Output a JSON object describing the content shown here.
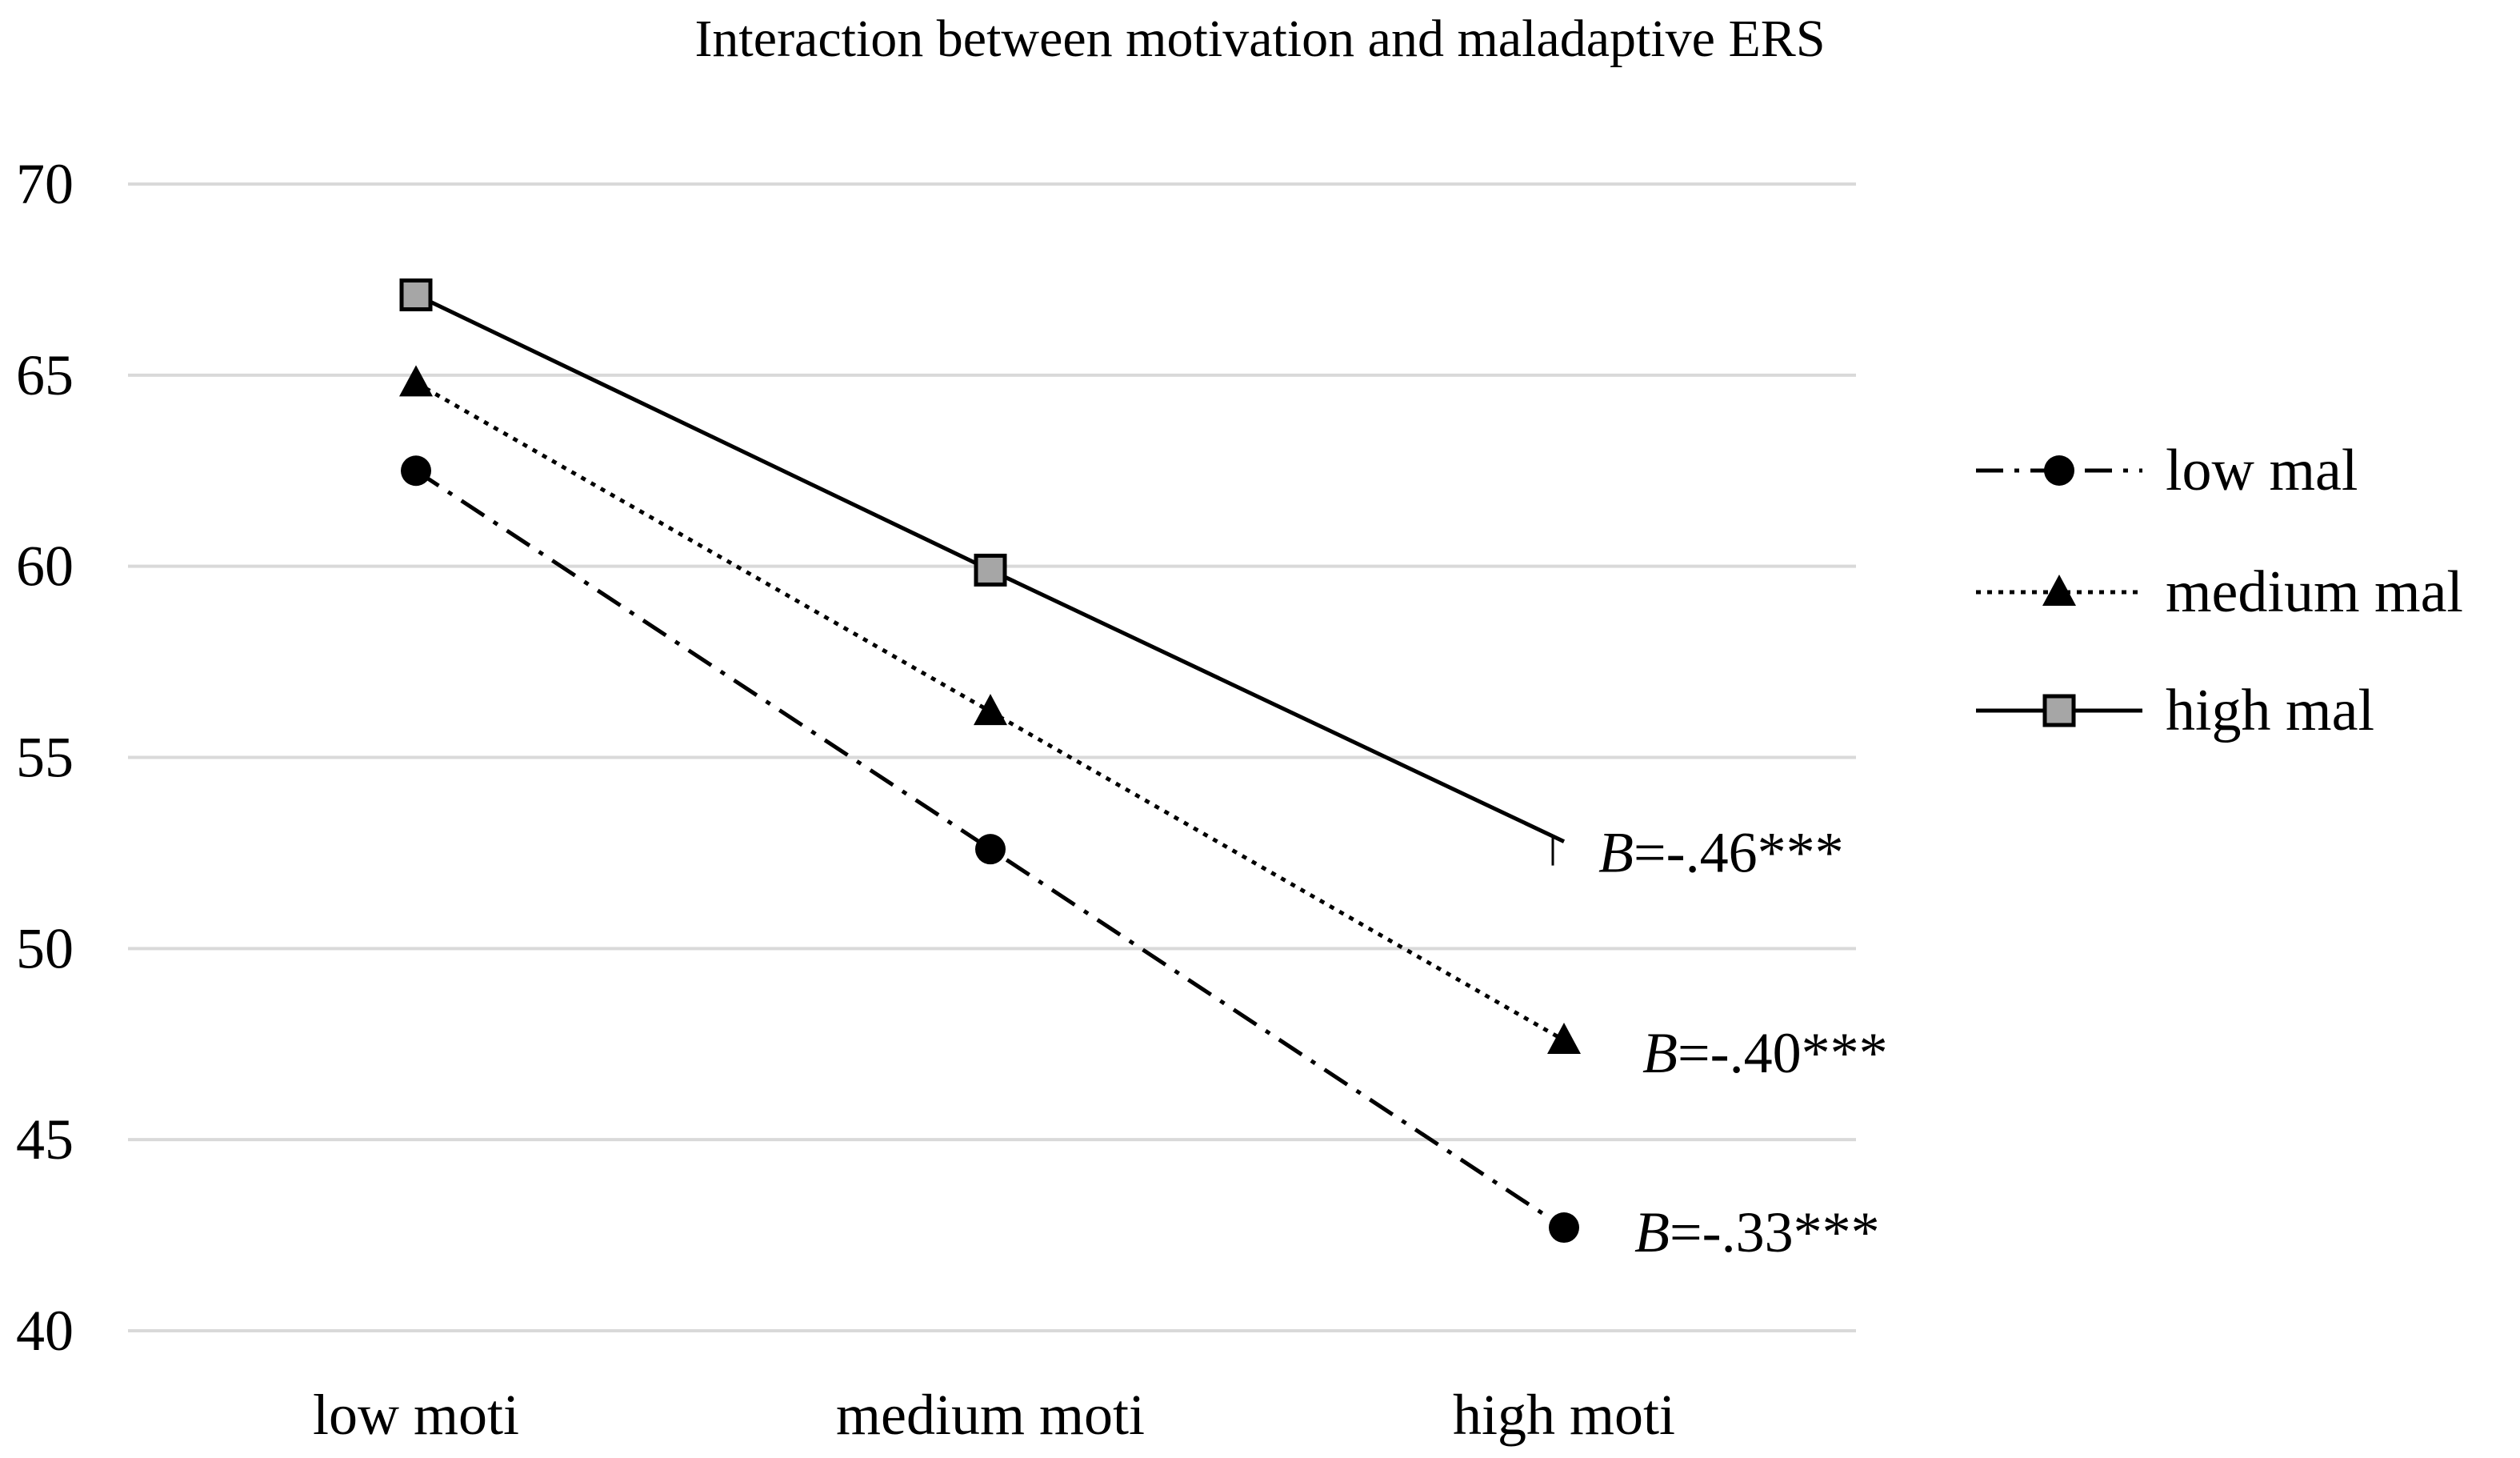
{
  "chart_data": {
    "type": "line",
    "title": "Interaction between motivation and maladaptive ERS",
    "xlabel": "",
    "ylabel": "",
    "categories": [
      "low moti",
      "medium moti",
      "high moti"
    ],
    "ylim": [
      40,
      70
    ],
    "yticks": [
      "70",
      "65",
      "60",
      "55",
      "50",
      "45",
      "40"
    ],
    "grid": true,
    "legend_position": "right",
    "series": [
      {
        "name": "low mal",
        "values": [
          62.5,
          52.6,
          42.7
        ],
        "marker": "circle",
        "line_style": "dash-dot",
        "annotation": "=-.33***",
        "annotation_italic": "B"
      },
      {
        "name": "medium mal",
        "values": [
          64.8,
          56.2,
          47.6
        ],
        "marker": "triangle",
        "line_style": "dotted",
        "annotation": "=-.40***",
        "annotation_italic": "B"
      },
      {
        "name": "high mal",
        "values": [
          67.1,
          59.9,
          52.8
        ],
        "marker": "square",
        "line_style": "solid",
        "annotation": "=-.46***",
        "annotation_italic": "B"
      }
    ],
    "colors": {
      "line": "#000000",
      "grid": "#d9d9d9",
      "square_fill": "#a6a6a6"
    }
  }
}
